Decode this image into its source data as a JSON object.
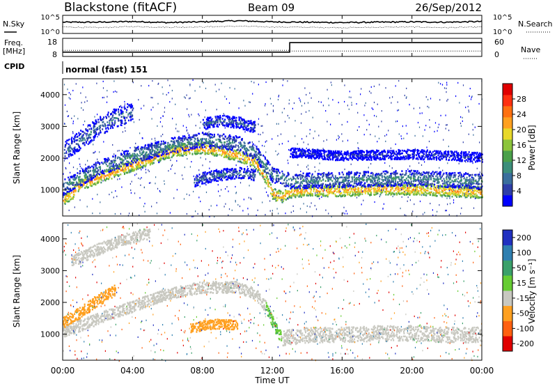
{
  "chart_data": [
    {
      "type": "line",
      "panel": "noise",
      "header": {
        "radar": "Blackstone (fitACF)",
        "beam": "Beam 09",
        "date": "26/Sep/2012"
      },
      "ylabel_left": "N.Sky",
      "ylabel_right": "N.Search",
      "yticks_left": [
        "10^5",
        "10^0"
      ],
      "yticks_right": [
        "10^5",
        "10^0"
      ],
      "x": [
        0,
        2,
        4,
        6,
        8,
        10,
        12,
        14,
        16,
        18,
        20,
        22,
        24
      ],
      "series": [
        {
          "name": "N.Sky",
          "values": [
            3.1,
            3.1,
            3.3,
            3.0,
            3.2,
            3.5,
            3.2,
            3.1,
            3.0,
            3.1,
            3.2,
            3.1,
            3.3
          ]
        },
        {
          "name": "N.Search",
          "values": [
            1.8,
            1.6,
            1.9,
            1.7,
            1.8,
            2.0,
            1.8,
            1.7,
            1.6,
            1.7,
            1.8,
            1.6,
            1.8
          ]
        }
      ]
    },
    {
      "type": "line",
      "panel": "frequency",
      "ylabel_left": "Freq.\n[MHz]",
      "ylabel_right": "Nave",
      "yticks_left": [
        "18",
        "8"
      ],
      "yticks_right": [
        "60",
        "0"
      ],
      "cpid_label": "CPID",
      "cpid_text": "normal (fast) 151",
      "series": [
        {
          "name": "Freq.",
          "x": [
            0,
            13,
            13,
            24
          ],
          "values": [
            10.4,
            10.4,
            15.6,
            15.6
          ]
        },
        {
          "name": "Nave",
          "x": [
            0,
            13,
            13,
            24
          ],
          "values": [
            20,
            20,
            18,
            18
          ]
        }
      ]
    },
    {
      "type": "heatmap",
      "panel": "power",
      "ylabel": "Slant Range [km]",
      "ylim": [
        180,
        4500
      ],
      "yticks": [
        1000,
        2000,
        3000,
        4000
      ],
      "colorbar": {
        "label": "Power [dB]",
        "ticks": [
          4,
          8,
          12,
          16,
          20,
          24,
          28
        ],
        "colors": [
          "#0000ff",
          "#2e3ea8",
          "#3a6e9c",
          "#3c8e7a",
          "#4aa04a",
          "#8cc43c",
          "#e8d82a",
          "#ffa020",
          "#ff7010",
          "#ff3010",
          "#e00000"
        ]
      },
      "bands": [
        {
          "t": [
            0,
            0.5,
            1,
            2,
            3,
            4,
            5,
            6,
            7,
            8,
            9,
            10,
            11,
            11.6,
            12,
            12.5,
            13,
            14,
            16,
            18,
            20,
            22,
            24
          ],
          "r": [
            700,
            900,
            1200,
            1400,
            1600,
            1800,
            2000,
            2200,
            2300,
            2350,
            2250,
            2100,
            1900,
            1400,
            900,
            800,
            950,
            1000,
            1000,
            1050,
            1050,
            1000,
            950
          ],
          "width_km": 300,
          "power_db": 24
        },
        {
          "t": [
            0,
            2,
            4,
            6,
            8,
            10,
            11,
            12,
            13,
            16,
            20,
            24
          ],
          "r": [
            1100,
            1700,
            2100,
            2400,
            2600,
            2500,
            2200,
            1500,
            1300,
            1350,
            1400,
            1300
          ],
          "width_km": 400,
          "power_db": 12
        },
        {
          "t": [
            0,
            1,
            2,
            3,
            4
          ],
          "r": [
            2200,
            2600,
            3000,
            3300,
            3500
          ],
          "width_km": 500,
          "power_db": 10
        },
        {
          "t": [
            7.5,
            8,
            9,
            10,
            11
          ],
          "r": [
            1300,
            1400,
            1500,
            1550,
            1500
          ],
          "width_km": 300,
          "power_db": 10
        },
        {
          "t": [
            8,
            9,
            10,
            11
          ],
          "r": [
            3100,
            3200,
            3150,
            3000
          ],
          "width_km": 300,
          "power_db": 9
        },
        {
          "t": [
            13,
            16,
            20,
            24
          ],
          "r": [
            2200,
            2100,
            2150,
            2050
          ],
          "width_km": 250,
          "power_db": 6
        }
      ],
      "xlim": [
        0,
        24
      ],
      "xticks": [
        "00:00",
        "04:00",
        "08:00",
        "12:00",
        "16:00",
        "20:00",
        "00:00"
      ]
    },
    {
      "type": "heatmap",
      "panel": "velocity",
      "ylabel": "Slant Range [km]",
      "ylim": [
        180,
        4500
      ],
      "yticks": [
        1000,
        2000,
        3000,
        4000
      ],
      "colorbar": {
        "label": "Velocity [m s⁻¹]",
        "ticks": [
          200,
          100,
          50,
          15,
          -15,
          -50,
          -100,
          -200
        ],
        "colors": [
          "#2030c0",
          "#2f7fb0",
          "#3aa06a",
          "#66cc33",
          "#c8c8c0",
          "#ffa020",
          "#ff6010",
          "#e00000"
        ]
      },
      "bands": [
        {
          "t": [
            0,
            2,
            4,
            6,
            8,
            10,
            11,
            11.6
          ],
          "r": [
            1100,
            1500,
            1900,
            2300,
            2500,
            2500,
            2300,
            1900
          ],
          "width_km": 300,
          "velocity": 0
        },
        {
          "t": [
            11.6,
            12,
            12.5
          ],
          "r": [
            1900,
            1400,
            900
          ],
          "width_km": 300,
          "velocity": 30
        },
        {
          "t": [
            12.5,
            14,
            16,
            18,
            20,
            22,
            24
          ],
          "r": [
            900,
            1000,
            1000,
            1050,
            1050,
            1000,
            1000
          ],
          "width_km": 400,
          "velocity": 0
        },
        {
          "t": [
            0,
            1,
            2,
            3
          ],
          "r": [
            1400,
            1700,
            2100,
            2400
          ],
          "width_km": 300,
          "velocity": -60
        },
        {
          "t": [
            7.3,
            8,
            9,
            10
          ],
          "r": [
            1200,
            1300,
            1350,
            1300
          ],
          "width_km": 250,
          "velocity": -60
        },
        {
          "t": [
            0.5,
            2,
            3.5,
            5
          ],
          "r": [
            3300,
            3700,
            4000,
            4200
          ],
          "width_km": 300,
          "velocity": 0
        }
      ],
      "xlim": [
        0,
        24
      ],
      "xticks": [
        "00:00",
        "04:00",
        "08:00",
        "12:00",
        "16:00",
        "20:00",
        "00:00"
      ],
      "xlabel": "Time UT"
    }
  ]
}
